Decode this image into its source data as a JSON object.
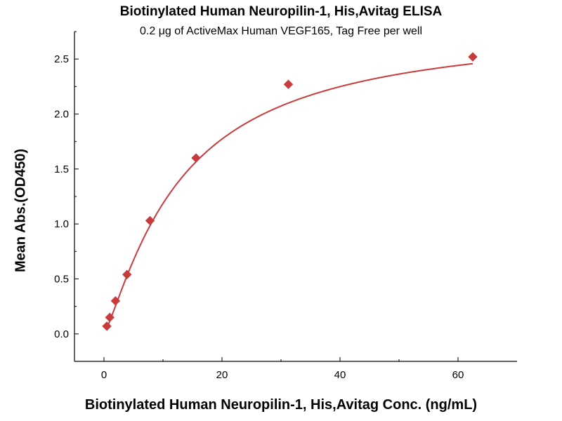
{
  "chart_data": {
    "type": "scatter",
    "title": "Biotinylated Human Neuropilin-1, His,Avitag ELISA",
    "subtitle": "0.2 μg of ActiveMax Human VEGF165, Tag Free per well",
    "xlabel": "Biotinylated Human Neuropilin-1, His,Avitag Conc. (ng/mL)",
    "ylabel": "Mean Abs.(OD450)",
    "xlim": [
      -5,
      70
    ],
    "ylim": [
      -0.25,
      2.75
    ],
    "xticks": [
      0,
      20,
      40,
      60
    ],
    "yticks": [
      0.0,
      0.5,
      1.0,
      1.5,
      2.0,
      2.5
    ],
    "ytick_labels": [
      "0.0",
      "0.5",
      "1.0",
      "1.5",
      "2.0",
      "2.5"
    ],
    "grid": false,
    "series": [
      {
        "marker": "diamond",
        "color": "#c83c3c",
        "points": [
          {
            "x": 0.488,
            "y": 0.07
          },
          {
            "x": 0.977,
            "y": 0.15
          },
          {
            "x": 1.95,
            "y": 0.3
          },
          {
            "x": 3.9,
            "y": 0.54
          },
          {
            "x": 7.8,
            "y": 1.03
          },
          {
            "x": 15.6,
            "y": 1.6
          },
          {
            "x": 31.25,
            "y": 2.27
          },
          {
            "x": 62.5,
            "y": 2.52
          }
        ],
        "fit_curve": true
      }
    ]
  }
}
